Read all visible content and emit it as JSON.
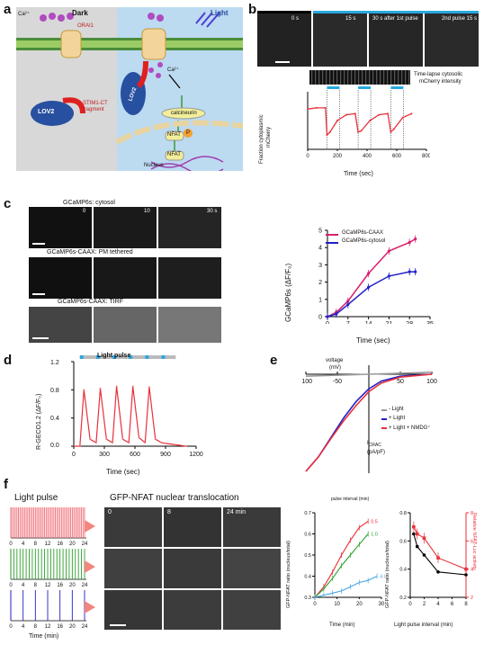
{
  "panels": {
    "a": {
      "label": "a",
      "dark": "Dark",
      "light": "Light",
      "ca_left": "Ca²⁺",
      "orai": "ORAI1",
      "ca_right": "Ca²⁺",
      "lov2_left": "LOV2",
      "stim_line1": "STIM1-CT",
      "stim_line2": "fragment",
      "lov2_right": "LOV2",
      "calcineurin": "calcineurin",
      "nfat1": "NFAT",
      "p": "P",
      "nfat2": "NFAT",
      "nucleus": "Nucleus"
    },
    "b": {
      "label": "b",
      "frames": [
        "0 s",
        "15 s",
        "30 s after 1st pulse",
        "2nd pulse 15 s"
      ],
      "kymo_label_1": "Time-lapse cytosolic",
      "kymo_label_2": "mCherry intensity",
      "ylabel_1": "Fraction cytoplasmic",
      "ylabel_2": "mCherry",
      "xlabel": "Time (sec)",
      "xticks": [
        "0",
        "200",
        "400",
        "600",
        "800"
      ]
    },
    "c": {
      "label": "c",
      "row1_title": "GCaMP6s: cytosol",
      "row1_times": [
        "0",
        "10",
        "30 s"
      ],
      "row2_title": "GCaMP6s-CAAX: PM tethered",
      "row3_title": "GCaMP6s-CAAX: TIRF",
      "ylabel": "GCaMP6s (ΔF/F₀)",
      "xlabel": "Time (sec)",
      "xticks": [
        "0",
        "7",
        "14",
        "21",
        "28",
        "35"
      ],
      "yticks": [
        "0",
        "1",
        "2",
        "3",
        "4",
        "5"
      ]
    },
    "d": {
      "label": "d",
      "pulse": "Light pulse",
      "ylabel": "R-GECO1.2 (ΔF/F₀)",
      "xlabel": "Time (sec)",
      "xticks": [
        "0",
        "300",
        "600",
        "900",
        "1200"
      ],
      "yticks": [
        "0.0",
        "0.4",
        "0.8",
        "1.2"
      ]
    },
    "e": {
      "label": "e",
      "voltage_1": "voltage",
      "voltage_2": "(mV)",
      "xticks": [
        "-100",
        "-50",
        "50",
        "100"
      ],
      "legend": [
        "- Light",
        "+ Light",
        "+ Light + NMDG⁺"
      ],
      "ylabel_1": "I",
      "ylabel_sub": "CRAC",
      "ylabel_2": "(pA/pF)"
    },
    "f": {
      "label": "f",
      "pulse_title": "Light pulse",
      "nfat_title": "GFP-NFAT nuclear translocation",
      "times": [
        "0",
        "8",
        "24 min"
      ],
      "x_ticks": [
        "0",
        "4",
        "8",
        "12",
        "16",
        "20",
        "24"
      ],
      "x_label": "Time (min)",
      "plot1_legend_title": "pulse interval (min)",
      "plot1_legend": [
        "0.5",
        "1.0",
        "4.0"
      ],
      "plot1_ylabel": "GFP-NFAT ratio (nucleus/total)",
      "plot1_xlabel": "Time (min)",
      "plot1_xticks": [
        "0",
        "10",
        "20",
        "30"
      ],
      "plot1_yticks": [
        "0.3",
        "0.4",
        "0.5",
        "0.6",
        "0.7"
      ],
      "plot2_ylabel": "GFP-NFAT ratio (nucleus/total)",
      "plot2_ylabel_r": "Relative NFAT-Luc activity",
      "plot2_xlabel": "Light pulse interval (min)",
      "plot2_xticks": [
        "0",
        "2",
        "4",
        "6",
        "8"
      ],
      "plot2_yticks": [
        "0.2",
        "0.4",
        "0.6",
        "0.8"
      ],
      "plot2_rticks": [
        "2",
        "4",
        "6",
        "8"
      ]
    }
  },
  "colors": {
    "red": "#e8303a",
    "pink": "#d8206e",
    "blue": "#2020c8",
    "green": "#2ca02c",
    "lightblue": "#4aa6e0",
    "cyanbar": "#28a8e0",
    "lightred": "#f06f79"
  },
  "chart_data": [
    {
      "type": "line",
      "id": "b",
      "xlabel": "Time (sec)",
      "ylabel": "Fraction cytoplasmic mCherry",
      "xlim": [
        0,
        800
      ],
      "series": [
        {
          "x": [
            0,
            60,
            120,
            130,
            150,
            200,
            260,
            320,
            340,
            360,
            420,
            480,
            540,
            560,
            580,
            640,
            700
          ],
          "y": [
            0.7,
            0.72,
            0.72,
            0.25,
            0.3,
            0.5,
            0.6,
            0.62,
            0.3,
            0.32,
            0.5,
            0.6,
            0.62,
            0.3,
            0.35,
            0.55,
            0.62
          ]
        }
      ]
    },
    {
      "type": "line",
      "id": "c",
      "xlabel": "Time (sec)",
      "ylabel": "GCaMP6s (ΔF/F₀)",
      "xlim": [
        0,
        35
      ],
      "ylim": [
        0,
        5
      ],
      "x": [
        0,
        3,
        7,
        14,
        21,
        28,
        30
      ],
      "series": [
        {
          "name": "GCaMP6s-CAAX",
          "values": [
            0,
            0.25,
            0.9,
            2.5,
            3.8,
            4.3,
            4.5
          ]
        },
        {
          "name": "GCaMP6s-cytosol",
          "values": [
            0,
            0.15,
            0.7,
            1.7,
            2.35,
            2.6,
            2.6
          ]
        }
      ]
    },
    {
      "type": "line",
      "id": "d",
      "xlabel": "Time (sec)",
      "ylabel": "R-GECO1.2 (ΔF/F₀)",
      "xlim": [
        0,
        1200
      ],
      "ylim": [
        0,
        1.2
      ],
      "pulses": [
        60,
        220,
        380,
        540,
        700,
        860
      ],
      "series": [
        {
          "x": [
            0,
            60,
            100,
            160,
            220,
            260,
            320,
            380,
            420,
            480,
            540,
            580,
            640,
            700,
            740,
            800,
            860,
            900,
            1000,
            1100
          ],
          "y": [
            0,
            0,
            0.8,
            0.1,
            0.05,
            0.82,
            0.1,
            0.05,
            0.85,
            0.1,
            0.05,
            0.85,
            0.12,
            0.05,
            0.84,
            0.1,
            0.05,
            0.04,
            0.02,
            0.0
          ]
        }
      ]
    },
    {
      "type": "line",
      "id": "e",
      "xlabel": "voltage (mV)",
      "ylabel": "I CRAC (pA/pF)",
      "xlim": [
        -100,
        100
      ],
      "series": [
        {
          "name": "- Light",
          "x": [
            -100,
            -50,
            0,
            50,
            100
          ],
          "y": [
            -0.02,
            -0.01,
            0,
            0.01,
            0.02
          ]
        },
        {
          "name": "+ Light",
          "x": [
            -100,
            -80,
            -60,
            -40,
            -20,
            0,
            20,
            50,
            100
          ],
          "y": [
            -1,
            -0.85,
            -0.65,
            -0.45,
            -0.28,
            -0.15,
            -0.07,
            -0.02,
            0
          ]
        },
        {
          "name": "+ Light + NMDG⁺",
          "x": [
            -100,
            -80,
            -60,
            -40,
            -20,
            0,
            20,
            50,
            100
          ],
          "y": [
            -1,
            -0.85,
            -0.66,
            -0.48,
            -0.32,
            -0.18,
            -0.09,
            -0.03,
            0
          ]
        }
      ]
    },
    {
      "type": "line",
      "id": "f1",
      "xlabel": "Time (min)",
      "ylabel": "GFP-NFAT ratio (nucleus/total)",
      "xlim": [
        0,
        30
      ],
      "ylim": [
        0.3,
        0.7
      ],
      "series": [
        {
          "name": "0.5",
          "x": [
            0,
            4,
            8,
            12,
            16,
            20,
            24
          ],
          "y": [
            0.3,
            0.35,
            0.42,
            0.5,
            0.57,
            0.63,
            0.66
          ]
        },
        {
          "name": "1.0",
          "x": [
            0,
            4,
            8,
            12,
            16,
            20,
            24
          ],
          "y": [
            0.3,
            0.34,
            0.39,
            0.45,
            0.5,
            0.55,
            0.6
          ]
        },
        {
          "name": "4.0",
          "x": [
            0,
            4,
            8,
            12,
            16,
            20,
            24,
            28
          ],
          "y": [
            0.3,
            0.31,
            0.32,
            0.33,
            0.35,
            0.37,
            0.38,
            0.4
          ]
        }
      ]
    },
    {
      "type": "line",
      "id": "f2",
      "xlabel": "Light pulse interval (min)",
      "ylabel": "GFP-NFAT ratio (nucleus/total)",
      "xlim": [
        0,
        8
      ],
      "series": [
        {
          "name": "GFP-NFAT ratio",
          "x": [
            0.5,
            1,
            2,
            4,
            8
          ],
          "y": [
            0.65,
            0.56,
            0.5,
            0.38,
            0.36
          ]
        },
        {
          "name": "Relative NFAT-Luc activity",
          "x": [
            0.5,
            1,
            2,
            4,
            8
          ],
          "y": [
            7.0,
            6.5,
            6.2,
            4.8,
            4.0
          ]
        }
      ]
    }
  ]
}
